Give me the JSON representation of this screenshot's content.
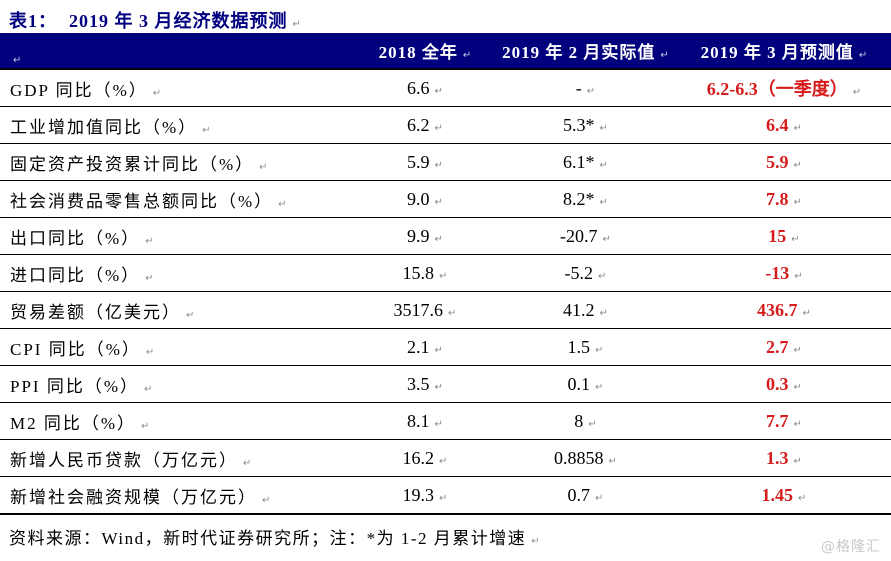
{
  "page": {
    "title_label": "表1：",
    "title_text": "2019 年 3 月经济数据预测",
    "source_note": "资料来源：Wind，新时代证券研究所；注：*为 1-2 月累计增速",
    "watermark": "@格隆汇",
    "return_mark": "↵"
  },
  "colors": {
    "header_bg": "#01017e",
    "title": "#000080",
    "forecast_red": "#d61c1c",
    "border": "#000000",
    "watermark": "#c9c9c9"
  },
  "table": {
    "columns": [
      "",
      "2018 全年",
      "2019 年 2 月实际值",
      "2019 年 3 月预测值"
    ],
    "rows": [
      {
        "label": "GDP 同比（%）",
        "y2018": "6.6",
        "feb2019": "-",
        "mar2019": "6.2-6.3（一季度）"
      },
      {
        "label": "工业增加值同比（%）",
        "y2018": "6.2",
        "feb2019": "5.3*",
        "mar2019": "6.4"
      },
      {
        "label": "固定资产投资累计同比（%）",
        "y2018": "5.9",
        "feb2019": "6.1*",
        "mar2019": "5.9"
      },
      {
        "label": "社会消费品零售总额同比（%）",
        "y2018": "9.0",
        "feb2019": "8.2*",
        "mar2019": "7.8"
      },
      {
        "label": "出口同比（%）",
        "y2018": "9.9",
        "feb2019": "-20.7",
        "mar2019": "15"
      },
      {
        "label": "进口同比（%）",
        "y2018": "15.8",
        "feb2019": "-5.2",
        "mar2019": "-13"
      },
      {
        "label": "贸易差额（亿美元）",
        "y2018": "3517.6",
        "feb2019": "41.2",
        "mar2019": "436.7"
      },
      {
        "label": "CPI 同比（%）",
        "y2018": "2.1",
        "feb2019": "1.5",
        "mar2019": "2.7"
      },
      {
        "label": "PPI 同比（%）",
        "y2018": "3.5",
        "feb2019": "0.1",
        "mar2019": "0.3"
      },
      {
        "label": "M2 同比（%）",
        "y2018": "8.1",
        "feb2019": "8",
        "mar2019": "7.7"
      },
      {
        "label": "新增人民币贷款（万亿元）",
        "y2018": "16.2",
        "feb2019": "0.8858",
        "mar2019": "1.3"
      },
      {
        "label": "新增社会融资规模（万亿元）",
        "y2018": "19.3",
        "feb2019": "0.7",
        "mar2019": "1.45"
      }
    ]
  }
}
